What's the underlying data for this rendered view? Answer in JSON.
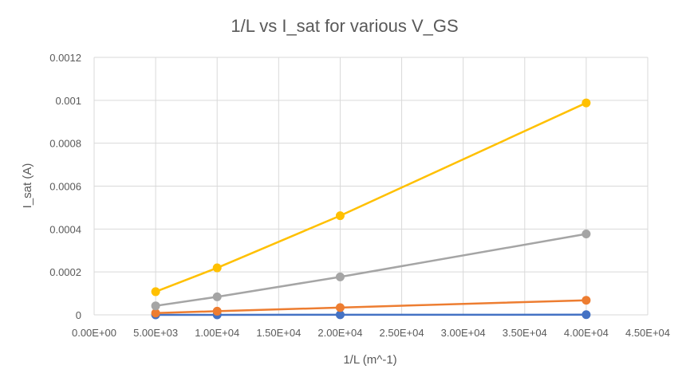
{
  "chart_data": {
    "type": "scatter",
    "title": "1/L vs I_sat for various V_GS",
    "xlabel": "1/L (m^-1)",
    "ylabel": "I_sat (A)",
    "xlim": [
      0,
      45000
    ],
    "ylim": [
      0,
      0.0012
    ],
    "x_ticks": [
      0,
      5000,
      10000,
      15000,
      20000,
      25000,
      30000,
      35000,
      40000,
      45000
    ],
    "x_tick_labels": [
      "0.00E+00",
      "5.00E+03",
      "1.00E+04",
      "1.50E+04",
      "2.00E+04",
      "2.50E+04",
      "3.00E+04",
      "3.50E+04",
      "4.00E+04",
      "4.50E+04"
    ],
    "y_ticks": [
      0,
      0.0002,
      0.0004,
      0.0006,
      0.0008,
      0.001,
      0.0012
    ],
    "y_tick_labels": [
      "0",
      "0.0002",
      "0.0004",
      "0.0006",
      "0.0008",
      "0.001",
      "0.0012"
    ],
    "grid": true,
    "legend": "none",
    "series": [
      {
        "color": "#4472C4",
        "x": [
          5000,
          10000,
          20000,
          40000
        ],
        "y": [
          1e-07,
          2e-07,
          4e-07,
          8e-07
        ]
      },
      {
        "color": "#ED7D31",
        "x": [
          5000,
          10000,
          20000,
          40000
        ],
        "y": [
          8.5e-06,
          1.7e-05,
          3.4e-05,
          6.8e-05
        ]
      },
      {
        "color": "#A5A5A5",
        "x": [
          5000,
          10000,
          20000,
          40000
        ],
        "y": [
          4.2e-05,
          8.4e-05,
          0.000177,
          0.000377
        ]
      },
      {
        "color": "#FFC000",
        "x": [
          5000,
          10000,
          20000,
          40000
        ],
        "y": [
          0.000108,
          0.000219,
          0.000462,
          0.000988
        ]
      }
    ]
  }
}
